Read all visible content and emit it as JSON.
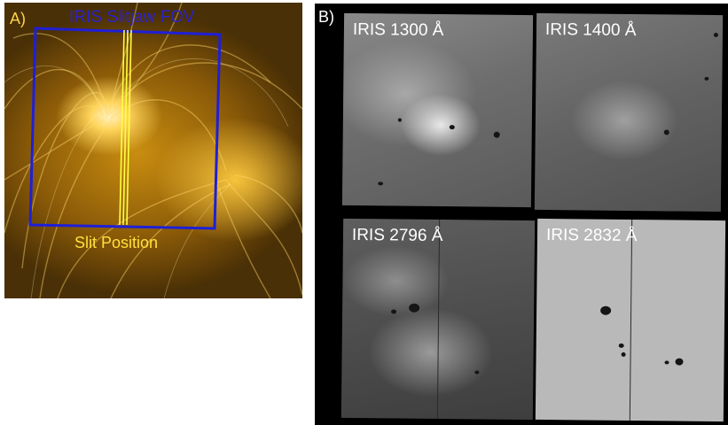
{
  "panel_a": {
    "label": "A)",
    "fov_label": "IRIS Slitjaw FOV",
    "slit_label": "Slit Position",
    "colors": {
      "fov_box": "#1f1fd6",
      "slit": "#ffff40",
      "background": "#c98d10"
    }
  },
  "panel_b": {
    "label": "B)",
    "tiles": [
      {
        "label": "IRIS 1300 Å"
      },
      {
        "label": "IRIS 1400 Å"
      },
      {
        "label": "IRIS 2796 Å"
      },
      {
        "label": "IRIS 2832 Å"
      }
    ]
  }
}
